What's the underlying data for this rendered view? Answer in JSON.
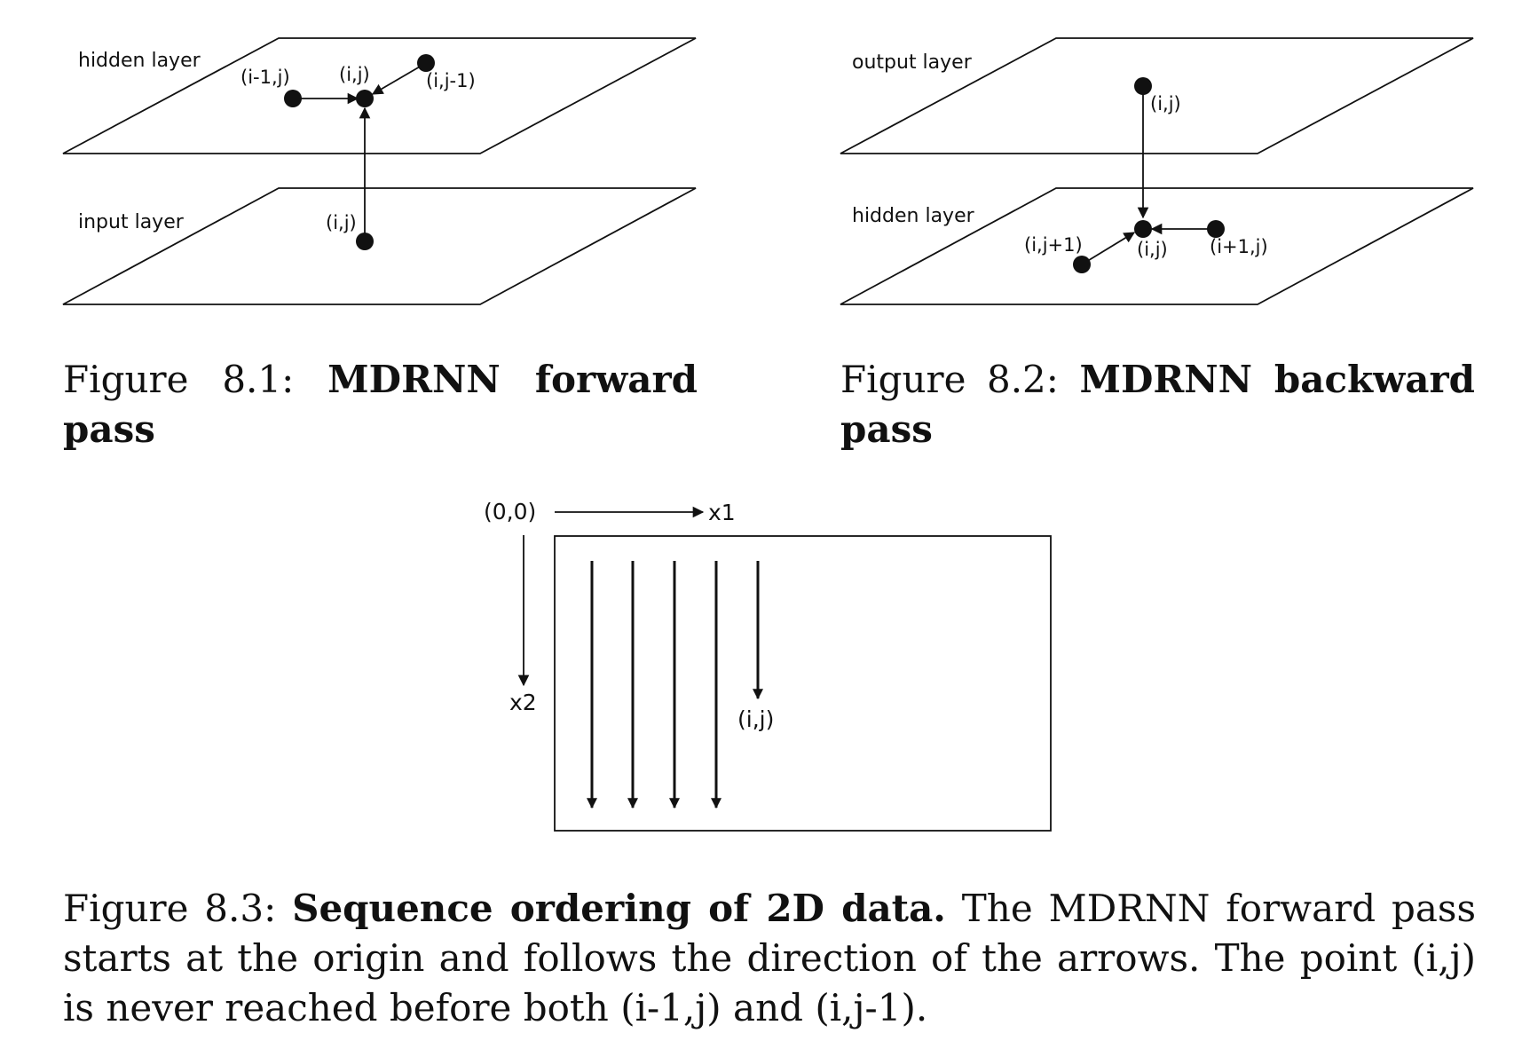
{
  "figure_8_1": {
    "top_plane_label": "hidden layer",
    "bottom_plane_label": "input layer",
    "node_left_label": "(i-1,j)",
    "node_center_label": "(i,j)",
    "node_right_label": "(i,j-1)",
    "node_input_label": "(i,j)",
    "caption_prefix": "Figure 8.1:",
    "caption_bold": "MDRNN forward pass"
  },
  "figure_8_2": {
    "top_plane_label": "output layer",
    "bottom_plane_label": "hidden layer",
    "node_output_label": "(i,j)",
    "node_left_label": "(i,j+1)",
    "node_center_label": "(i,j)",
    "node_right_label": "(i+1,j)",
    "caption_prefix": "Figure 8.2:",
    "caption_bold": "MDRNN backward pass"
  },
  "figure_8_3": {
    "origin_label": "(0,0)",
    "x1_label": "x1",
    "x2_label": "x2",
    "point_label": "(i,j)",
    "caption_prefix": "Figure 8.3:",
    "caption_bold": "Sequence ordering of 2D data.",
    "caption_text": "The MDRNN forward pass starts at the origin and follows the direction of the arrows. The point (i,j) is never reached before both (i-1,j) and (i,j-1)."
  }
}
